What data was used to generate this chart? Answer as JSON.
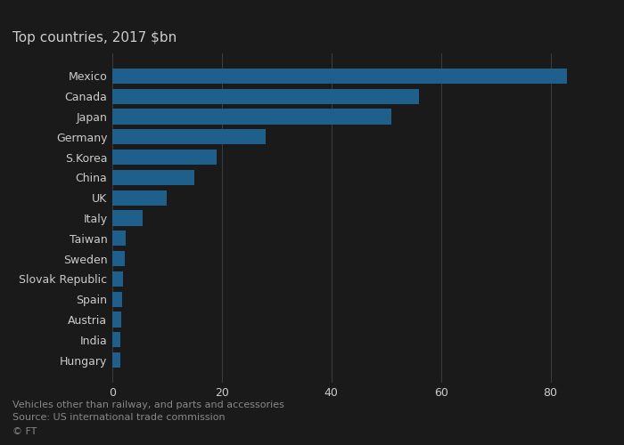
{
  "title": "Top countries, 2017 $bn",
  "categories": [
    "Mexico",
    "Canada",
    "Japan",
    "Germany",
    "S.Korea",
    "China",
    "UK",
    "Italy",
    "Taiwan",
    "Sweden",
    "Slovak Republic",
    "Spain",
    "Austria",
    "India",
    "Hungary"
  ],
  "values": [
    83,
    56,
    51,
    28,
    19,
    15,
    10,
    5.5,
    2.5,
    2.2,
    2.0,
    1.8,
    1.6,
    1.5,
    1.4
  ],
  "bar_color": "#1f5f8b",
  "background_color": "#1a1a1a",
  "plot_bg_color": "#1a1a1a",
  "gridline_color": "#3a3a3a",
  "text_color": "#cccccc",
  "title_color": "#cccccc",
  "footnote_color": "#888888",
  "xlim": [
    0,
    90
  ],
  "xticks": [
    0,
    20,
    40,
    60,
    80
  ],
  "footnote_line1": "Vehicles other than railway, and parts and accessories",
  "footnote_line2": "Source: US international trade commission",
  "footnote_line3": "© FT",
  "title_fontsize": 11,
  "label_fontsize": 9,
  "tick_fontsize": 9,
  "footnote_fontsize": 8
}
